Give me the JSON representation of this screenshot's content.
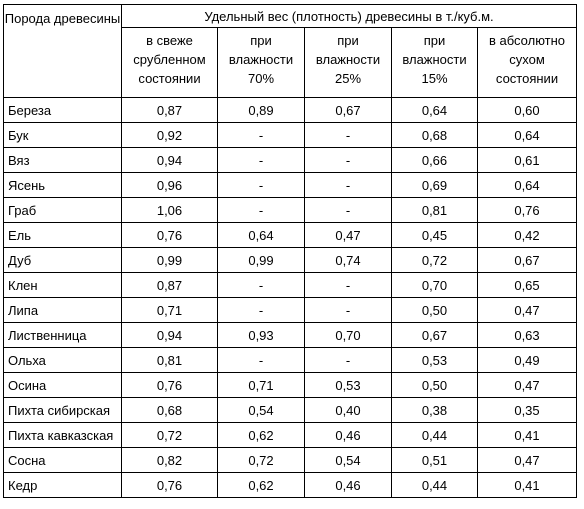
{
  "table": {
    "species_header": "Порода древесины",
    "group_header": "Удельный вес (плотность) древесины в т./куб.м.",
    "sub_headers": [
      "в свеже срубленном состоянии",
      "при влажности 70%",
      "при влажности 25%",
      "при влажности 15%",
      "в абсолютно сухом состоянии"
    ],
    "rows": [
      {
        "name": "Береза",
        "values": [
          "0,87",
          "0,89",
          "0,67",
          "0,64",
          "0,60"
        ]
      },
      {
        "name": "Бук",
        "values": [
          "0,92",
          "-",
          "-",
          "0,68",
          "0,64"
        ]
      },
      {
        "name": "Вяз",
        "values": [
          "0,94",
          "-",
          "-",
          "0,66",
          "0,61"
        ]
      },
      {
        "name": "Ясень",
        "values": [
          "0,96",
          "-",
          "-",
          "0,69",
          "0,64"
        ]
      },
      {
        "name": "Граб",
        "values": [
          "1,06",
          "-",
          "-",
          "0,81",
          "0,76"
        ]
      },
      {
        "name": "Ель",
        "values": [
          "0,76",
          "0,64",
          "0,47",
          "0,45",
          "0,42"
        ]
      },
      {
        "name": "Дуб",
        "values": [
          "0,99",
          "0,99",
          "0,74",
          "0,72",
          "0,67"
        ]
      },
      {
        "name": "Клен",
        "values": [
          "0,87",
          "-",
          "-",
          "0,70",
          "0,65"
        ]
      },
      {
        "name": "Липа",
        "values": [
          "0,71",
          "-",
          "-",
          "0,50",
          "0,47"
        ]
      },
      {
        "name": "Лиственница",
        "values": [
          "0,94",
          "0,93",
          "0,70",
          "0,67",
          "0,63"
        ]
      },
      {
        "name": "Ольха",
        "values": [
          "0,81",
          "-",
          "-",
          "0,53",
          "0,49"
        ]
      },
      {
        "name": "Осина",
        "values": [
          "0,76",
          "0,71",
          "0,53",
          "0,50",
          "0,47"
        ]
      },
      {
        "name": "Пихта сибирская",
        "values": [
          "0,68",
          "0,54",
          "0,40",
          "0,38",
          "0,35"
        ]
      },
      {
        "name": "Пихта кавказская",
        "values": [
          "0,72",
          "0,62",
          "0,46",
          "0,44",
          "0,41"
        ]
      },
      {
        "name": "Сосна",
        "values": [
          "0,82",
          "0,72",
          "0,54",
          "0,51",
          "0,47"
        ]
      },
      {
        "name": "Кедр",
        "values": [
          "0,76",
          "0,62",
          "0,46",
          "0,44",
          "0,41"
        ]
      }
    ]
  }
}
